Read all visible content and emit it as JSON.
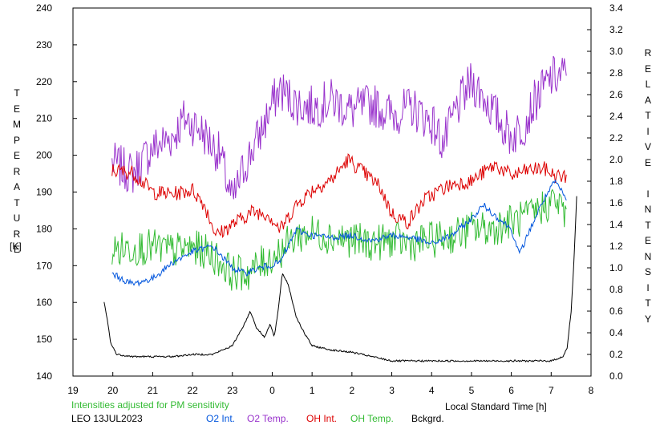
{
  "chart_data": {
    "type": "line",
    "xlabel": "Local Standard Time [h]",
    "ylabel_left": "TEMPERATURE",
    "ylabel_left_unit": "[K]",
    "ylabel_right": "RELATIVE INTENSITY",
    "x_range": [
      19,
      8
    ],
    "x_ticks": [
      "19",
      "20",
      "21",
      "22",
      "23",
      "0",
      "1",
      "2",
      "3",
      "4",
      "5",
      "6",
      "7",
      "8"
    ],
    "y_left_range": [
      140,
      240
    ],
    "y_left_ticks": [
      "240",
      "230",
      "220",
      "210",
      "200",
      "190",
      "180",
      "170",
      "160",
      "150",
      "140"
    ],
    "y_right_range": [
      0.0,
      3.4
    ],
    "y_right_ticks": [
      "3.4",
      "3.2",
      "3.0",
      "2.8",
      "2.6",
      "2.4",
      "2.2",
      "2.0",
      "1.8",
      "1.6",
      "1.4",
      "1.2",
      "1.0",
      "0.8",
      "0.6",
      "0.4",
      "0.2",
      "0.0"
    ],
    "note": "Intensities adjusted for PM sensitivity",
    "station_date": "LEO 13JUL2023",
    "legend": [
      {
        "name": "O2 Int.",
        "color": "#0055dd"
      },
      {
        "name": "O2 Temp.",
        "color": "#9933cc"
      },
      {
        "name": "OH Int.",
        "color": "#dd0000"
      },
      {
        "name": "OH Temp.",
        "color": "#33bb33"
      },
      {
        "name": "Bckgrd.",
        "color": "#000000"
      }
    ],
    "series": [
      {
        "name": "O2 Temp.",
        "axis": "left",
        "noise": 6,
        "points": [
          [
            19.98,
            198
          ],
          [
            20.5,
            195
          ],
          [
            21.0,
            202
          ],
          [
            21.5,
            205
          ],
          [
            21.8,
            210
          ],
          [
            22.2,
            207
          ],
          [
            22.7,
            200
          ],
          [
            23.0,
            187
          ],
          [
            23.3,
            197
          ],
          [
            23.7,
            206
          ],
          [
            24.05,
            215
          ],
          [
            24.2,
            218
          ],
          [
            24.6,
            214
          ],
          [
            25.0,
            213
          ],
          [
            25.5,
            215
          ],
          [
            26.0,
            212
          ],
          [
            26.5,
            214
          ],
          [
            27.0,
            211
          ],
          [
            27.5,
            213
          ],
          [
            28.0,
            209
          ],
          [
            28.3,
            203
          ],
          [
            28.6,
            212
          ],
          [
            29.0,
            220
          ],
          [
            29.3,
            216
          ],
          [
            29.6,
            211
          ],
          [
            30.0,
            205
          ],
          [
            30.3,
            208
          ],
          [
            30.6,
            215
          ],
          [
            31.0,
            221
          ],
          [
            31.4,
            222
          ]
        ]
      },
      {
        "name": "OH Int.",
        "axis": "right",
        "noise": 0.07,
        "points": [
          [
            19.98,
            1.9
          ],
          [
            20.5,
            1.88
          ],
          [
            21.0,
            1.7
          ],
          [
            21.5,
            1.68
          ],
          [
            22.0,
            1.72
          ],
          [
            22.3,
            1.58
          ],
          [
            22.6,
            1.3
          ],
          [
            23.0,
            1.4
          ],
          [
            23.5,
            1.52
          ],
          [
            23.9,
            1.5
          ],
          [
            24.2,
            1.35
          ],
          [
            24.6,
            1.58
          ],
          [
            25.0,
            1.72
          ],
          [
            25.5,
            1.82
          ],
          [
            25.9,
            2.0
          ],
          [
            26.3,
            1.88
          ],
          [
            26.7,
            1.75
          ],
          [
            27.0,
            1.5
          ],
          [
            27.4,
            1.42
          ],
          [
            27.8,
            1.62
          ],
          [
            28.2,
            1.72
          ],
          [
            28.6,
            1.78
          ],
          [
            29.0,
            1.8
          ],
          [
            29.3,
            1.88
          ],
          [
            29.6,
            1.95
          ],
          [
            30.0,
            1.85
          ],
          [
            30.4,
            1.9
          ],
          [
            30.8,
            1.92
          ],
          [
            31.1,
            1.85
          ],
          [
            31.4,
            1.84
          ]
        ]
      },
      {
        "name": "OH Temp.",
        "axis": "left",
        "noise": 5,
        "points": [
          [
            19.98,
            174
          ],
          [
            20.5,
            175
          ],
          [
            21.0,
            175
          ],
          [
            21.5,
            174
          ],
          [
            22.0,
            175
          ],
          [
            22.5,
            173
          ],
          [
            23.0,
            168
          ],
          [
            23.4,
            168
          ],
          [
            23.8,
            171
          ],
          [
            24.2,
            174
          ],
          [
            24.6,
            178
          ],
          [
            25.0,
            179
          ],
          [
            25.5,
            178
          ],
          [
            26.0,
            177
          ],
          [
            26.5,
            176
          ],
          [
            27.0,
            177
          ],
          [
            27.5,
            176
          ],
          [
            28.0,
            177
          ],
          [
            28.5,
            178
          ],
          [
            29.0,
            180
          ],
          [
            29.5,
            180
          ],
          [
            30.0,
            182
          ],
          [
            30.4,
            183
          ],
          [
            30.8,
            186
          ],
          [
            31.1,
            188
          ],
          [
            31.4,
            183
          ]
        ]
      },
      {
        "name": "O2 Int.",
        "axis": "right",
        "noise": 0.03,
        "points": [
          [
            19.98,
            0.95
          ],
          [
            20.2,
            0.9
          ],
          [
            20.5,
            0.85
          ],
          [
            21.0,
            0.9
          ],
          [
            21.5,
            1.05
          ],
          [
            22.0,
            1.15
          ],
          [
            22.5,
            1.2
          ],
          [
            23.0,
            1.0
          ],
          [
            23.3,
            0.95
          ],
          [
            23.7,
            1.0
          ],
          [
            24.2,
            1.05
          ],
          [
            24.6,
            1.35
          ],
          [
            25.0,
            1.3
          ],
          [
            25.5,
            1.28
          ],
          [
            26.0,
            1.3
          ],
          [
            26.5,
            1.25
          ],
          [
            27.0,
            1.3
          ],
          [
            27.5,
            1.28
          ],
          [
            28.0,
            1.22
          ],
          [
            28.5,
            1.3
          ],
          [
            29.0,
            1.45
          ],
          [
            29.3,
            1.58
          ],
          [
            29.6,
            1.48
          ],
          [
            30.0,
            1.36
          ],
          [
            30.2,
            1.12
          ],
          [
            30.5,
            1.38
          ],
          [
            30.8,
            1.62
          ],
          [
            31.1,
            1.8
          ],
          [
            31.4,
            1.62
          ]
        ]
      },
      {
        "name": "Bckgrd.",
        "axis": "right",
        "noise": 0.008,
        "points": [
          [
            19.78,
            0.68
          ],
          [
            19.85,
            0.55
          ],
          [
            19.95,
            0.3
          ],
          [
            20.1,
            0.2
          ],
          [
            20.5,
            0.18
          ],
          [
            21.0,
            0.18
          ],
          [
            21.5,
            0.18
          ],
          [
            22.0,
            0.2
          ],
          [
            22.5,
            0.2
          ],
          [
            23.0,
            0.28
          ],
          [
            23.3,
            0.48
          ],
          [
            23.45,
            0.6
          ],
          [
            23.6,
            0.45
          ],
          [
            23.8,
            0.36
          ],
          [
            23.95,
            0.48
          ],
          [
            24.05,
            0.36
          ],
          [
            24.15,
            0.6
          ],
          [
            24.25,
            0.95
          ],
          [
            24.4,
            0.85
          ],
          [
            24.6,
            0.55
          ],
          [
            24.8,
            0.4
          ],
          [
            25.0,
            0.28
          ],
          [
            25.5,
            0.24
          ],
          [
            26.0,
            0.22
          ],
          [
            26.5,
            0.18
          ],
          [
            27.0,
            0.14
          ],
          [
            27.5,
            0.14
          ],
          [
            28.0,
            0.14
          ],
          [
            28.5,
            0.14
          ],
          [
            29.0,
            0.14
          ],
          [
            29.5,
            0.14
          ],
          [
            30.0,
            0.14
          ],
          [
            30.5,
            0.14
          ],
          [
            31.0,
            0.14
          ],
          [
            31.3,
            0.18
          ],
          [
            31.4,
            0.26
          ],
          [
            31.5,
            0.6
          ],
          [
            31.55,
            0.9
          ],
          [
            31.6,
            1.3
          ],
          [
            31.65,
            1.75
          ]
        ]
      }
    ]
  }
}
